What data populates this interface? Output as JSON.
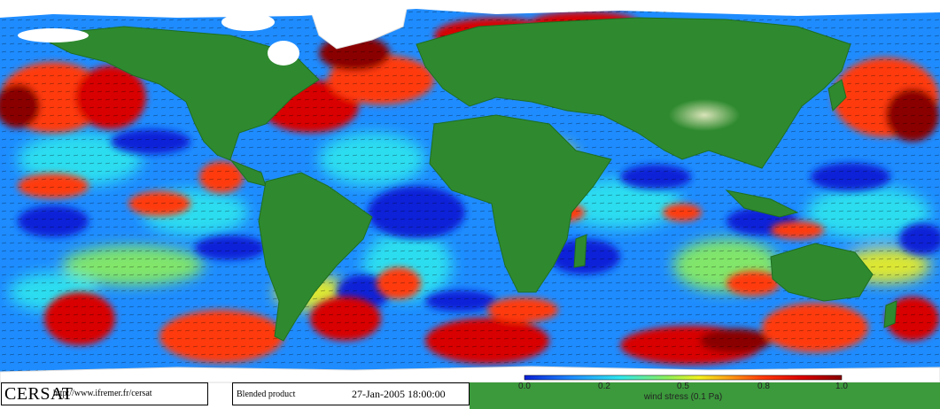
{
  "footer": {
    "brand": "CERSAT",
    "url": "http://www.ifremer.fr/cersat",
    "product": "Blended product",
    "datetime": "27-Jan-2005 18:00:00"
  },
  "colorbar": {
    "title": "wind stress (0.1 Pa)",
    "ticks": [
      "0.0",
      "0.2",
      "0.5",
      "0.8",
      "1.0"
    ],
    "tick_values": [
      0.0,
      0.2,
      0.5,
      0.8,
      1.0
    ],
    "range": [
      0.0,
      1.0
    ],
    "colors": [
      "#0a1fd6",
      "#1e8cff",
      "#2ee6ee",
      "#8cf05a",
      "#f2f21e",
      "#ff9a14",
      "#ff3a0a",
      "#d80000",
      "#8a0000"
    ]
  },
  "colors": {
    "land_low": "#2f8a2f",
    "land_mid": "#1f6e1f",
    "land_high": "#c9d8a6",
    "ice": "#ffffff",
    "vector": "#000000"
  }
}
